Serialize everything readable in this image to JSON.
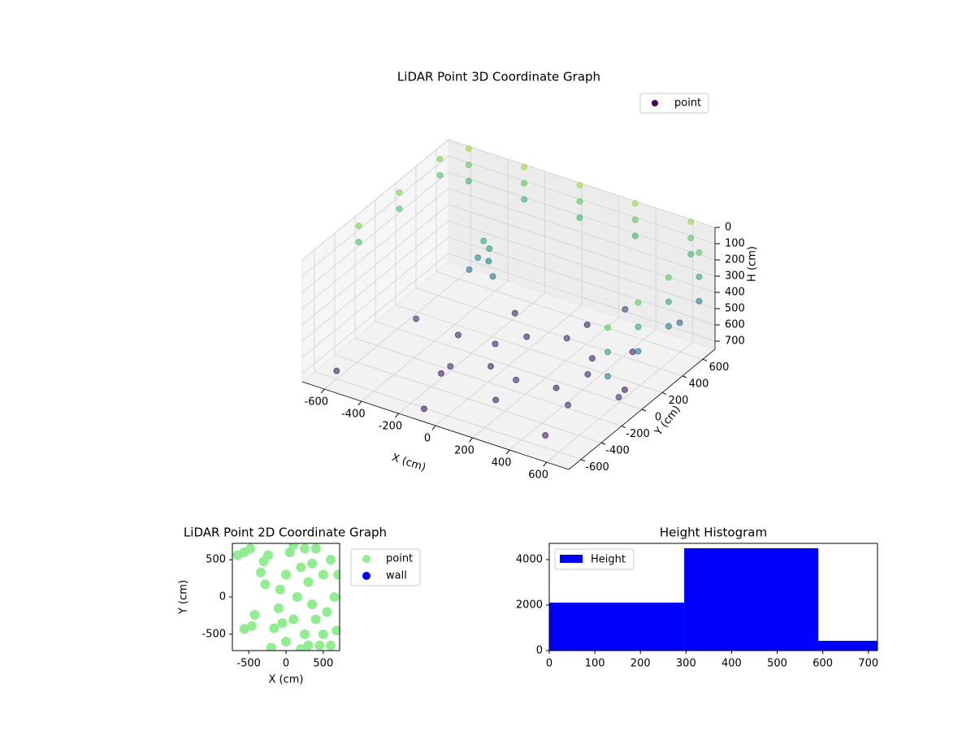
{
  "chart_data": [
    {
      "type": "scatter3d",
      "title": "LiDAR Point 3D Coordinate Graph",
      "x_label": "X (cm)",
      "y_label": "Y (cm)",
      "z_label": "H (cm)",
      "xlim": [
        -720,
        720
      ],
      "ylim": [
        -720,
        720
      ],
      "zlim": [
        750,
        0
      ],
      "xticks": [
        -600,
        -400,
        -200,
        0,
        200,
        400,
        600
      ],
      "yticks": [
        -600,
        -400,
        -200,
        0,
        200,
        400,
        600
      ],
      "zticks": [
        0,
        100,
        200,
        300,
        400,
        500,
        600,
        700
      ],
      "colormap": "viridis",
      "grid": true,
      "legend": "upper right",
      "series": [
        {
          "name": "point",
          "color": "#440154",
          "x": [
            -600,
            -300,
            0,
            300,
            600,
            -600,
            -300,
            0,
            300,
            600,
            -600,
            -300,
            0,
            300,
            600,
            700,
            700,
            700,
            700,
            700,
            700,
            700,
            700,
            700,
            700,
            700,
            700,
            -700,
            -700,
            -700,
            -700,
            -700,
            -700,
            -300,
            -280,
            -320,
            -300,
            -250,
            -350,
            600,
            468,
            150,
            -168,
            -300,
            -168,
            150,
            468,
            400,
            327,
            150,
            -27,
            -100,
            -27,
            150,
            327,
            -600,
            -100,
            500,
            650,
            -500,
            300,
            650,
            -200
          ],
          "y": [
            700,
            700,
            700,
            700,
            700,
            700,
            700,
            700,
            700,
            700,
            700,
            700,
            700,
            700,
            700,
            -300,
            0,
            300,
            600,
            -300,
            0,
            300,
            600,
            -300,
            0,
            300,
            600,
            -200,
            200,
            600,
            -200,
            200,
            600,
            300,
            320,
            280,
            350,
            300,
            250,
            50,
            368,
            500,
            368,
            50,
            -268,
            -400,
            -268,
            50,
            227,
            300,
            227,
            50,
            -127,
            -200,
            -127,
            -600,
            -650,
            -550,
            -100,
            0,
            600,
            500,
            -300
          ],
          "z": [
            0,
            0,
            0,
            0,
            0,
            100,
            100,
            100,
            100,
            100,
            200,
            200,
            200,
            200,
            200,
            100,
            100,
            100,
            100,
            250,
            250,
            250,
            250,
            400,
            400,
            400,
            400,
            50,
            50,
            50,
            150,
            150,
            150,
            250,
            300,
            350,
            400,
            450,
            420,
            700,
            680,
            700,
            680,
            700,
            680,
            700,
            680,
            680,
            700,
            680,
            700,
            680,
            700,
            680,
            700,
            700,
            720,
            710,
            650,
            650,
            600,
            500,
            720
          ]
        }
      ]
    },
    {
      "type": "scatter",
      "title": "LiDAR Point 2D Coordinate Graph",
      "x_label": "X (cm)",
      "y_label": "Y (cm)",
      "xlim": [
        -720,
        720
      ],
      "ylim": [
        -720,
        720
      ],
      "xticks": [
        -500,
        0,
        500
      ],
      "yticks": [
        -500,
        0,
        500
      ],
      "legend": "outside right",
      "series": [
        {
          "name": "point",
          "color": "#90ee90",
          "x": [
            -650,
            -560,
            -480,
            -300,
            -240,
            -340,
            -280,
            -420,
            -560,
            -460,
            -200,
            -160,
            -100,
            -80,
            0,
            50,
            100,
            150,
            200,
            250,
            300,
            350,
            400,
            450,
            500,
            550,
            600,
            650,
            680,
            100,
            200,
            300,
            400,
            500,
            250,
            0,
            -50,
            350,
            600,
            700
          ],
          "y": [
            560,
            600,
            650,
            480,
            560,
            330,
            170,
            -240,
            -430,
            -390,
            -680,
            -420,
            -150,
            100,
            300,
            600,
            -300,
            0,
            400,
            -500,
            200,
            -100,
            650,
            -650,
            300,
            -200,
            500,
            0,
            -450,
            700,
            -700,
            -650,
            -300,
            -500,
            650,
            -600,
            -350,
            450,
            -650,
            300
          ]
        },
        {
          "name": "wall",
          "color": "#0000ff",
          "x": [],
          "y": []
        }
      ]
    },
    {
      "type": "histogram",
      "title": "Height Histogram",
      "bins": [
        0,
        296,
        590,
        720
      ],
      "counts": [
        2110,
        4500,
        430
      ],
      "xlim": [
        0,
        720
      ],
      "ylim": [
        0,
        4714
      ],
      "xticks": [
        0,
        100,
        200,
        300,
        400,
        500,
        600,
        700
      ],
      "yticks": [
        0,
        2000,
        4000
      ],
      "legend": "upper left",
      "series_name": "Height",
      "color": "#0000ff"
    }
  ]
}
